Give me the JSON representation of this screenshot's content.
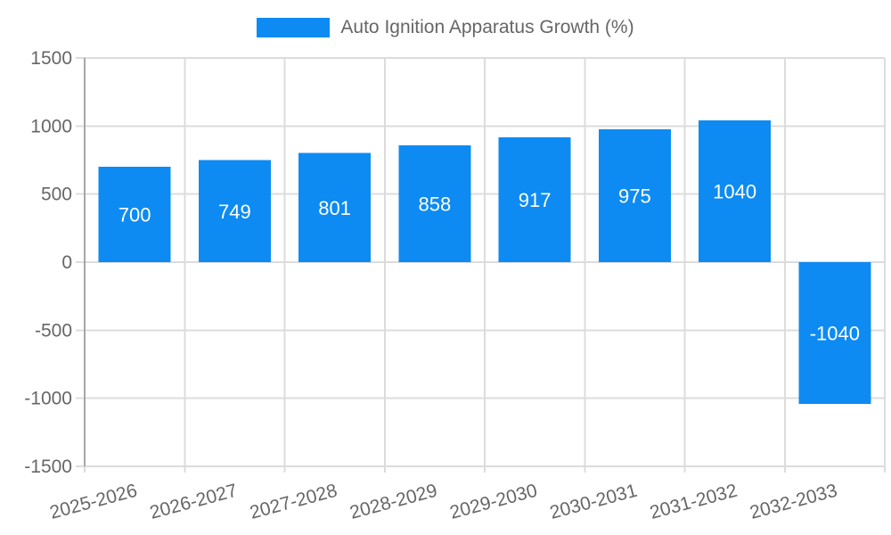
{
  "chart_data": {
    "type": "bar",
    "title": "Auto Ignition Apparatus Growth (%)",
    "categories": [
      "2025-2026",
      "2026-2027",
      "2027-2028",
      "2028-2029",
      "2029-2030",
      "2030-2031",
      "2031-2032",
      "2032-2033"
    ],
    "values": [
      700,
      749,
      801,
      858,
      917,
      975,
      1040,
      -1040
    ],
    "value_labels": [
      "700",
      "749",
      "801",
      "858",
      "917",
      "975",
      "1040",
      "-1040"
    ],
    "xlabel": "",
    "ylabel": "",
    "ylim": [
      -1500,
      1500
    ],
    "ytick_step": 500,
    "ytick_labels": [
      "-1500",
      "-1000",
      "-500",
      "0",
      "500",
      "1000",
      "1500"
    ],
    "grid": true,
    "legend_position": "top"
  },
  "colors": {
    "bar": "#0d8bf2",
    "grid": "#dcdcdc",
    "axis": "#a6a6a6",
    "tick_text": "#666666",
    "value_text": "#ffffff",
    "background": "#ffffff"
  }
}
